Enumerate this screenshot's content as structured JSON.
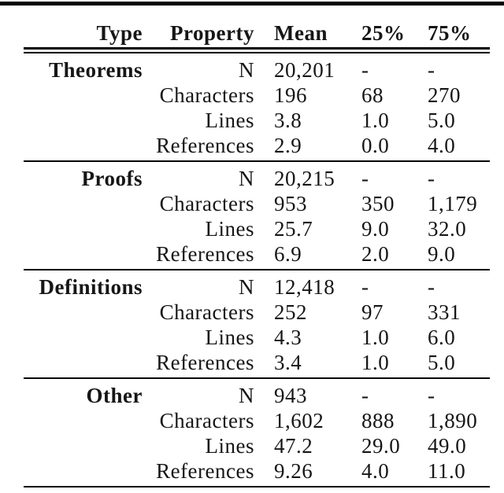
{
  "table": {
    "columns": [
      "Type",
      "Property",
      "Mean",
      "25%",
      "75%"
    ],
    "groups": [
      {
        "type": "Theorems",
        "rows": [
          {
            "property": "N",
            "mean": "20,201",
            "p25": "-",
            "p75": "-"
          },
          {
            "property": "Characters",
            "mean": "196",
            "p25": "68",
            "p75": "270"
          },
          {
            "property": "Lines",
            "mean": "3.8",
            "p25": "1.0",
            "p75": "5.0"
          },
          {
            "property": "References",
            "mean": "2.9",
            "p25": "0.0",
            "p75": "4.0"
          }
        ]
      },
      {
        "type": "Proofs",
        "rows": [
          {
            "property": "N",
            "mean": "20,215",
            "p25": "-",
            "p75": "-"
          },
          {
            "property": "Characters",
            "mean": "953",
            "p25": "350",
            "p75": "1,179"
          },
          {
            "property": "Lines",
            "mean": "25.7",
            "p25": "9.0",
            "p75": "32.0"
          },
          {
            "property": "References",
            "mean": "6.9",
            "p25": "2.0",
            "p75": "9.0"
          }
        ]
      },
      {
        "type": "Definitions",
        "rows": [
          {
            "property": "N",
            "mean": "12,418",
            "p25": "-",
            "p75": "-"
          },
          {
            "property": "Characters",
            "mean": "252",
            "p25": "97",
            "p75": "331"
          },
          {
            "property": "Lines",
            "mean": "4.3",
            "p25": "1.0",
            "p75": "6.0"
          },
          {
            "property": "References",
            "mean": "3.4",
            "p25": "1.0",
            "p75": "5.0"
          }
        ]
      },
      {
        "type": "Other",
        "rows": [
          {
            "property": "N",
            "mean": "943",
            "p25": "-",
            "p75": "-"
          },
          {
            "property": "Characters",
            "mean": "1,602",
            "p25": "888",
            "p75": "1,890"
          },
          {
            "property": "Lines",
            "mean": "47.2",
            "p25": "29.0",
            "p75": "49.0"
          },
          {
            "property": "References",
            "mean": "9.26",
            "p25": "4.0",
            "p75": "11.0"
          }
        ]
      }
    ]
  },
  "colors": {
    "rule": "#000000",
    "text": "#161616",
    "background": "#ffffff"
  }
}
